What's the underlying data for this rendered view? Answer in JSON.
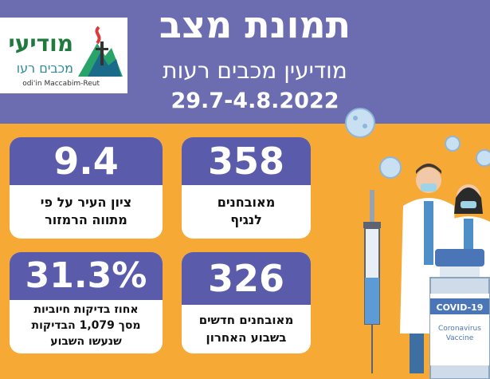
{
  "header": {
    "title": "תמונת מצב",
    "subtitle": "מודיעין מכבים רעות",
    "dates": "29.7-4.8.2022"
  },
  "logo": {
    "name": "מודיעי",
    "sub": "מכבים רעו",
    "english": "odi'in Maccabim-Reut"
  },
  "stats": {
    "active_number": "358",
    "active_label_1": "מאובחנים",
    "active_label_2": "לנגיף",
    "score_number": "9.4",
    "score_label_1": "ציון העיר על פי",
    "score_label_2": "מתווה הרמזור",
    "new_number": "326",
    "new_label_1": "מאובחנים חדשים",
    "new_label_2": "בשבוע האחרון",
    "positive_number": "31.3%",
    "positive_label_1": "אחוז בדיקות חיוביות",
    "positive_label_2": "מסך 1,079 הבדיקות",
    "positive_label_3": "שנעשו השבוע"
  },
  "vial": {
    "brand": "COVID-19",
    "name_1": "Coronavirus",
    "name_2": "Vaccine"
  },
  "colors": {
    "header_bg": "#6b6db0",
    "body_bg": "#f7a935",
    "card_header": "#5a5cab"
  }
}
